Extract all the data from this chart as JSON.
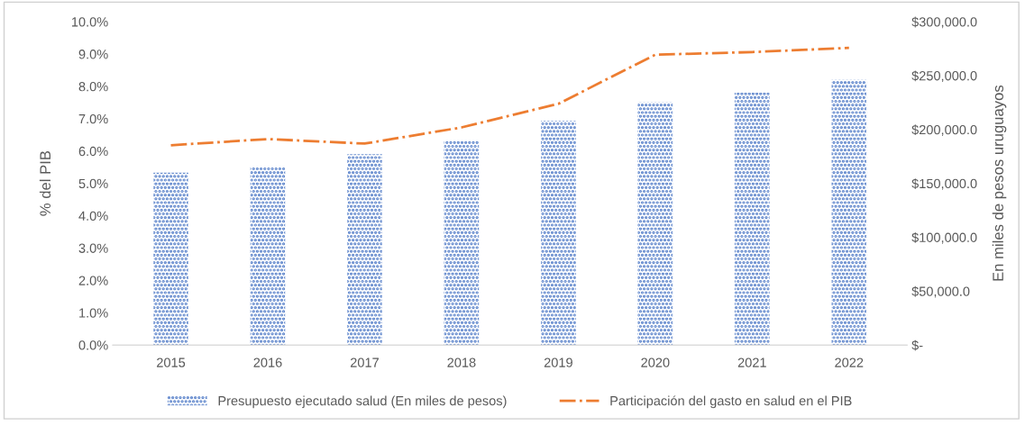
{
  "chart_data": {
    "type": "bar",
    "xlabel": null,
    "ylabel": "% del PIB",
    "y2label": "En miles de pesos uruguayos",
    "categories": [
      "2015",
      "2016",
      "2017",
      "2018",
      "2019",
      "2020",
      "2021",
      "2022"
    ],
    "series": [
      {
        "name": "Presupuesto ejecutado salud (En miles de pesos)",
        "axis": "y2",
        "color": "#4472c4",
        "values": [
          160000,
          165000,
          177000,
          189000,
          208000,
          225000,
          234000,
          246000
        ]
      },
      {
        "name": "Participación del gasto en salud en el PIB",
        "type": "line",
        "color": "#ed7d31",
        "line_style": "dashdot",
        "marker": "none",
        "values": [
          6.18,
          6.37,
          6.23,
          6.73,
          7.46,
          8.98,
          9.06,
          9.19
        ]
      }
    ],
    "ylim": [
      0,
      10
    ],
    "yticks": [
      {
        "value": 0,
        "label": "0.0%"
      },
      {
        "value": 1,
        "label": "1.0%"
      },
      {
        "value": 2,
        "label": "2.0%"
      },
      {
        "value": 3,
        "label": "3.0%"
      },
      {
        "value": 4,
        "label": "4.0%"
      },
      {
        "value": 5,
        "label": "5.0%"
      },
      {
        "value": 6,
        "label": "6.0%"
      },
      {
        "value": 7,
        "label": "7.0%"
      },
      {
        "value": 8,
        "label": "8.0%"
      },
      {
        "value": 9,
        "label": "9.0%"
      },
      {
        "value": 10,
        "label": "10.0%"
      }
    ],
    "y2lim": [
      0,
      300000
    ],
    "y2ticks": [
      {
        "value": 0,
        "label": "$-"
      },
      {
        "value": 50000,
        "label": "$50,000.0"
      },
      {
        "value": 100000,
        "label": "$100,000.0"
      },
      {
        "value": 150000,
        "label": "$150,000.0"
      },
      {
        "value": 200000,
        "label": "$200,000.0"
      },
      {
        "value": 250000,
        "label": "$250,000.0"
      },
      {
        "value": 300000,
        "label": "$300,000.0"
      }
    ],
    "grid": false,
    "legend": "bottom"
  }
}
